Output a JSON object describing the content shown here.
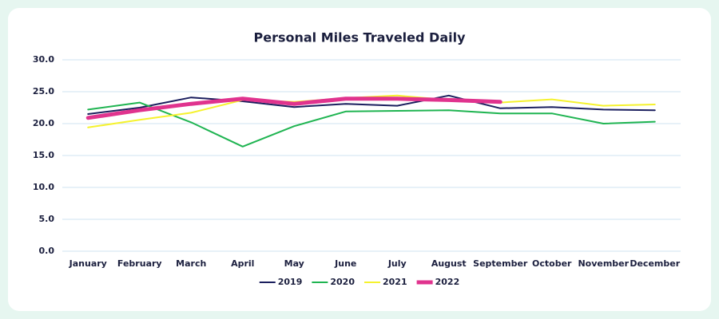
{
  "chart_data": {
    "type": "line",
    "title": "Personal Miles Traveled Daily",
    "categories": [
      "January",
      "February",
      "March",
      "April",
      "May",
      "June",
      "July",
      "August",
      "September",
      "October",
      "November",
      "December"
    ],
    "series": [
      {
        "name": "2019",
        "color": "#1b1f5e",
        "line_width": 2,
        "values": [
          21.5,
          22.5,
          24.1,
          23.5,
          22.6,
          23.1,
          22.8,
          24.4,
          22.4,
          22.6,
          22.2,
          22.1
        ]
      },
      {
        "name": "2020",
        "color": "#1fb451",
        "line_width": 2,
        "values": [
          22.2,
          23.3,
          20.2,
          16.4,
          19.6,
          21.9,
          22.0,
          22.1,
          21.6,
          21.6,
          20.0,
          20.3
        ]
      },
      {
        "name": "2021",
        "color": "#f5f22e",
        "line_width": 2,
        "values": [
          19.4,
          20.6,
          21.7,
          23.7,
          23.4,
          24.0,
          24.4,
          23.7,
          23.3,
          23.8,
          22.8,
          23.0
        ]
      },
      {
        "name": "2022",
        "color": "#e0338e",
        "line_width": 5,
        "values": [
          20.9,
          22.1,
          23.1,
          23.9,
          23.1,
          23.9,
          23.9,
          23.7,
          23.4,
          null,
          null,
          null
        ]
      }
    ],
    "ylim": [
      0,
      30
    ],
    "yticks": [
      {
        "value": 0,
        "label": "0.0"
      },
      {
        "value": 5,
        "label": "5.0"
      },
      {
        "value": 10,
        "label": "10.0"
      },
      {
        "value": 15,
        "label": "15.0"
      },
      {
        "value": 20,
        "label": "20.0"
      },
      {
        "value": 25,
        "label": "25.0"
      },
      {
        "value": 30,
        "label": "30.0"
      }
    ],
    "grid": true,
    "legend": "bottom"
  }
}
